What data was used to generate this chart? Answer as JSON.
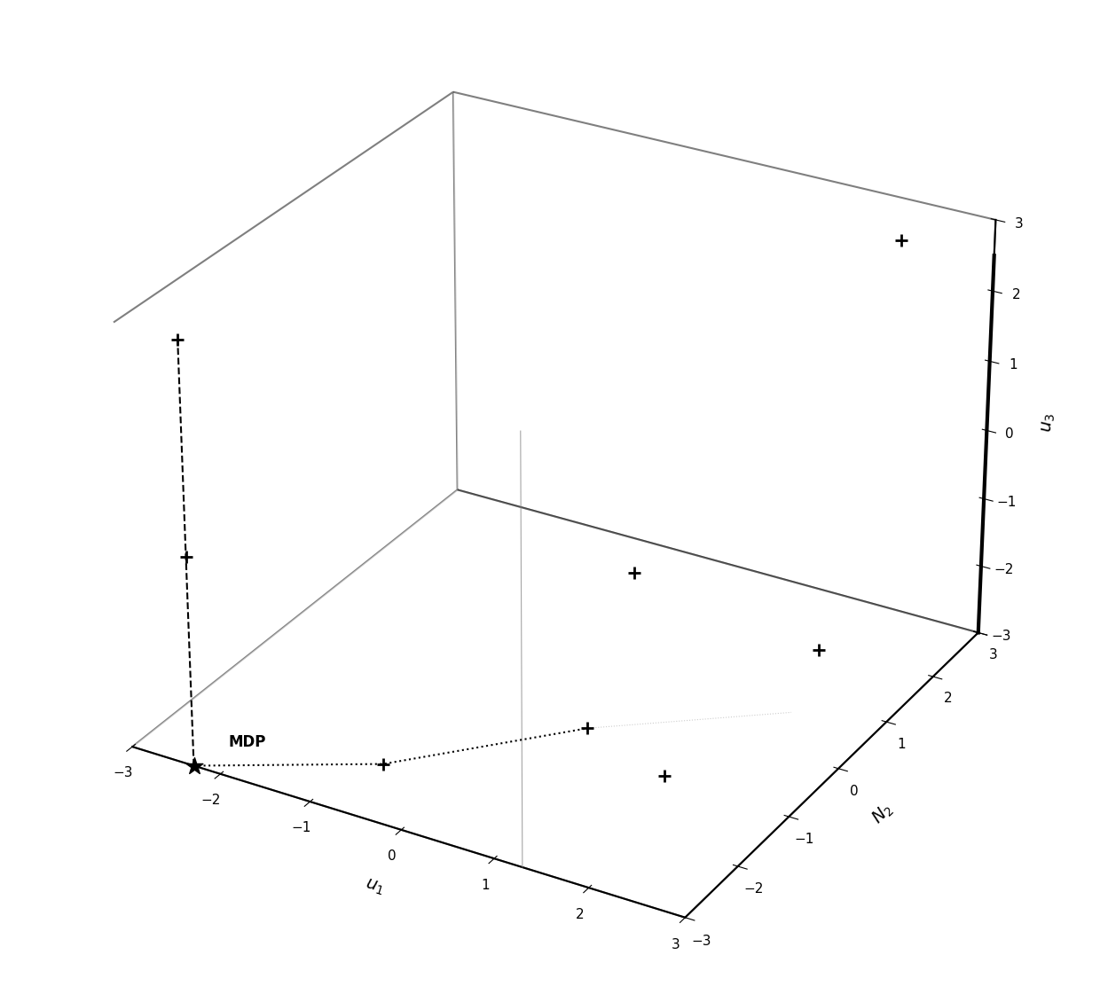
{
  "xlim": [
    -3,
    3
  ],
  "ylim": [
    -3,
    3
  ],
  "zlim": [
    -3,
    3
  ],
  "xlabel": "u_1",
  "ylabel": "N_2",
  "zlabel": "u_3",
  "xticks": [
    -3,
    -2,
    -1,
    0,
    1,
    2,
    3
  ],
  "yticks": [
    -3,
    -2,
    -1,
    0,
    1,
    2,
    3
  ],
  "zticks": [
    -3,
    -2,
    -1,
    0,
    1,
    2,
    3
  ],
  "scatter_points_plus": [
    [
      -2.3,
      -3.0,
      0.0
    ],
    [
      -2.3,
      -3.0,
      3.0
    ],
    [
      1.3,
      -1.8,
      -1.85
    ],
    [
      -0.5,
      -2.5,
      -2.6
    ],
    [
      1.5,
      -1.3,
      0.1
    ],
    [
      2.5,
      2.0,
      3.1
    ],
    [
      1.4,
      -0.5,
      -3.4
    ],
    [
      1.5,
      2.5,
      -3.5
    ]
  ],
  "mdp_point": [
    -2.3,
    -3.0,
    -3.0
  ],
  "mdp_label": "MDP",
  "dashed_line_x": -2.3,
  "dashed_line_y": -3.0,
  "dashed_line_z_start": -3.0,
  "dashed_line_z_end": 3.0,
  "dotted_line_pts": [
    [
      -2.3,
      -3.0,
      -3.0
    ],
    [
      -0.5,
      -2.5,
      -2.6
    ],
    [
      1.3,
      -1.8,
      -1.85
    ]
  ],
  "thin_vert_line_x": 1.3,
  "thin_vert_line_y": -3.0,
  "thin_vert_line_z_start": -3.0,
  "thin_vert_line_z_end": 3.0,
  "thick_vert_line_x": 3.0,
  "thick_vert_line_y": 3.0,
  "thick_vert_line_z_start": -3.0,
  "thick_vert_line_z_end": 2.5,
  "background_color": "#ffffff",
  "line_color": "#000000",
  "marker_color": "#000000",
  "marker_size": 100,
  "elev": 28,
  "azim": -60
}
